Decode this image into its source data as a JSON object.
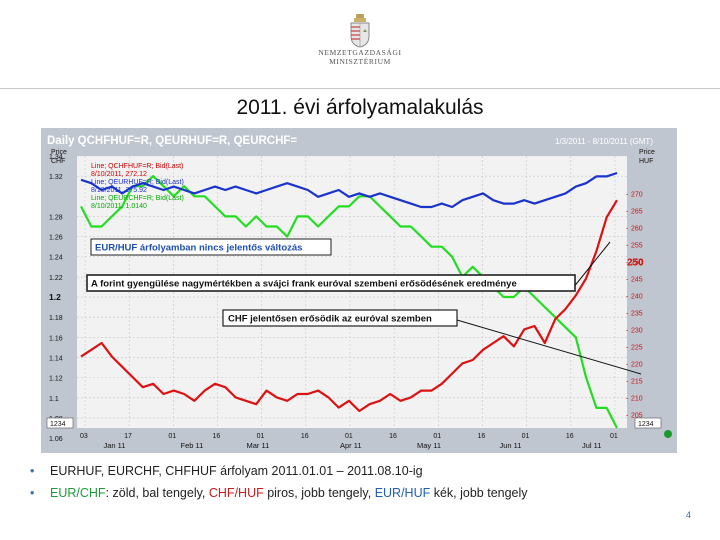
{
  "header": {
    "logo_line1": "NEMZETGAZDASÁGI",
    "logo_line2": "MINISZTÉRIUM",
    "slide_title": "2011. évi árfolyamalakulás"
  },
  "chart_data": {
    "type": "line",
    "title": "Daily QCHFHUF=R, QEURHUF=R, QEURCHF=",
    "date_range_label": "1/3/2011 - 8/10/2011 (GMT)",
    "left_axis": {
      "unit_top": "Price",
      "unit": "CHF",
      "ylim": [
        1.07,
        1.34
      ],
      "ticks": [
        "1.34",
        "1.32",
        "1.28",
        "1.26",
        "1.24",
        "1.22",
        "1.2",
        "1.18",
        "1.16",
        "1.14",
        "1.12",
        "1.1",
        "1.08",
        "1.06"
      ]
    },
    "right_axis": {
      "unit_top": "Price",
      "unit": "HUF",
      "ylim": [
        201,
        281
      ],
      "ticks": [
        "270",
        "265",
        "260",
        "255",
        "250",
        "245",
        "240",
        "235",
        "230",
        "225",
        "220",
        "215",
        "210",
        "205"
      ]
    },
    "x_ticks_days": [
      "03",
      "17",
      "01",
      "16",
      "01",
      "16",
      "01",
      "16",
      "01",
      "16",
      "01",
      "16",
      "01"
    ],
    "x_month_labels": [
      "Jan 11",
      "Feb 11",
      "Mar 11",
      "Apr 11",
      "May 11",
      "Jun 11",
      "Jul 11"
    ],
    "left_label_box": "1234",
    "right_label_box": "1234",
    "legend_lines": [
      {
        "text": "Line; QCHFHUF=R; Bid(Last)",
        "color": "#cc0000"
      },
      {
        "text": "8/10/2011, 272.12",
        "color": "#cc0000"
      },
      {
        "text": "Line; QEURHUF=R; Bid(Last)",
        "color": "#1a33cc"
      },
      {
        "text": "8/10/2011, 275.92",
        "color": "#1a33cc"
      },
      {
        "text": "Line; QEURCHF=R; Bid(Last)",
        "color": "#00aa00"
      },
      {
        "text": "8/10/2011, 1.0140",
        "color": "#00aa00"
      }
    ],
    "annotations": [
      "EUR/HUF árfolyamban nincs jelentős változás",
      "A forint gyengülése nagymértékben a svájci frank euróval szembeni erősödésének eredménye",
      "CHF jelentősen erősödik az euróval szemben"
    ],
    "right_axis_highlight": "250",
    "series": [
      {
        "name": "QEURCHF=R",
        "axis": "left",
        "color": "#22dd22",
        "values": [
          1.29,
          1.27,
          1.27,
          1.28,
          1.29,
          1.31,
          1.31,
          1.32,
          1.31,
          1.3,
          1.31,
          1.3,
          1.3,
          1.29,
          1.28,
          1.28,
          1.27,
          1.28,
          1.27,
          1.27,
          1.26,
          1.28,
          1.28,
          1.27,
          1.28,
          1.29,
          1.29,
          1.3,
          1.3,
          1.29,
          1.28,
          1.27,
          1.27,
          1.26,
          1.25,
          1.25,
          1.24,
          1.22,
          1.23,
          1.22,
          1.21,
          1.2,
          1.2,
          1.21,
          1.2,
          1.19,
          1.18,
          1.17,
          1.16,
          1.12,
          1.09,
          1.09,
          1.07
        ]
      },
      {
        "name": "QCHFHUF=R",
        "axis": "right",
        "color": "#dd1111",
        "values": [
          222,
          224,
          226,
          222,
          219,
          216,
          213,
          214,
          211,
          212,
          211,
          209,
          212,
          214,
          213,
          210,
          209,
          208,
          212,
          210,
          209,
          211,
          211,
          212,
          210,
          207,
          209,
          206,
          208,
          209,
          211,
          209,
          210,
          212,
          212,
          214,
          217,
          220,
          221,
          224,
          226,
          228,
          225,
          230,
          231,
          226,
          233,
          236,
          240,
          245,
          253,
          263,
          268
        ]
      },
      {
        "name": "QEURHUF=R",
        "axis": "right",
        "color": "#1a33cc",
        "values": [
          274,
          273,
          271,
          272,
          270,
          272,
          273,
          272,
          271,
          272,
          271,
          270,
          271,
          272,
          271,
          272,
          271,
          270,
          271,
          272,
          273,
          272,
          271,
          269,
          270,
          271,
          269,
          270,
          269,
          270,
          269,
          268,
          267,
          266,
          266,
          267,
          266,
          268,
          269,
          270,
          268,
          267,
          267,
          268,
          267,
          268,
          269,
          270,
          272,
          273,
          275,
          275,
          276
        ]
      }
    ]
  }
}
